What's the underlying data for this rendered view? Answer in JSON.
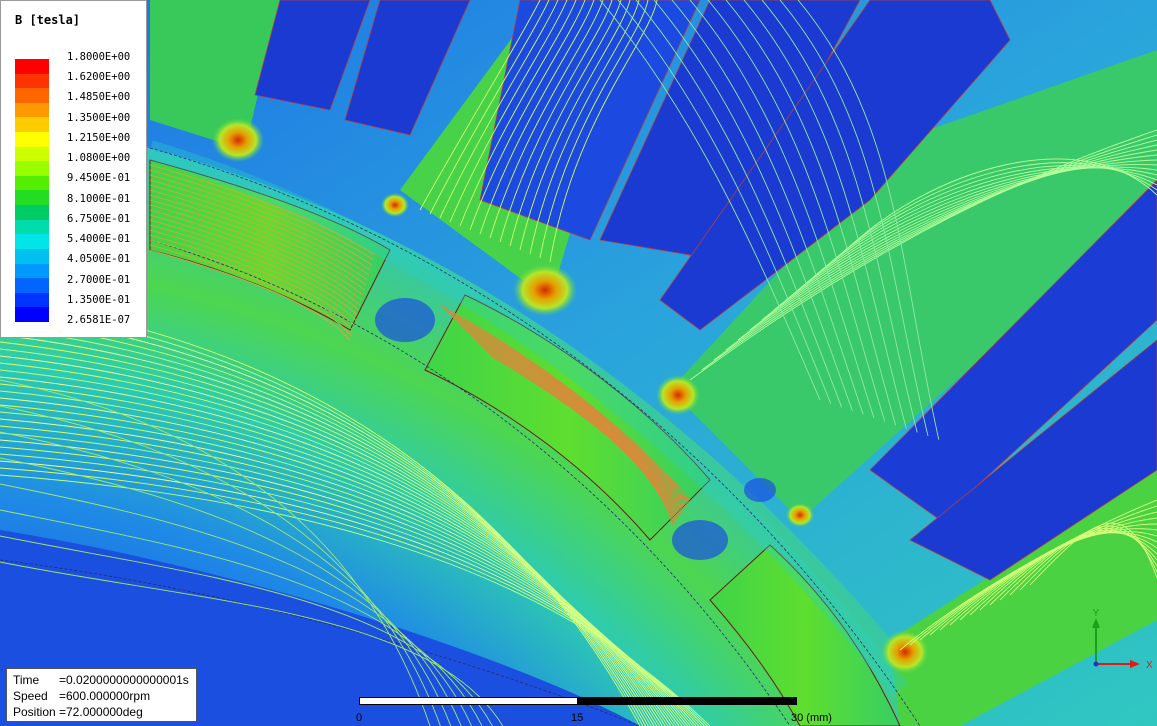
{
  "legend": {
    "title": "B [tesla]",
    "ticks": [
      "1.8000E+00",
      "1.6200E+00",
      "1.4850E+00",
      "1.3500E+00",
      "1.2150E+00",
      "1.0800E+00",
      "9.4500E-01",
      "8.1000E-01",
      "6.7500E-01",
      "5.4000E-01",
      "4.0500E-01",
      "2.7000E-01",
      "1.3500E-01",
      "2.6581E-07"
    ],
    "colors": [
      "#ff0000",
      "#ff3300",
      "#ff6600",
      "#ff9900",
      "#ffcc00",
      "#ffff00",
      "#ccff00",
      "#99ff00",
      "#55ee00",
      "#22dd22",
      "#00cc66",
      "#00ddaa",
      "#00e6e6",
      "#00c0f0",
      "#0099ff",
      "#0066ff",
      "#0033ff",
      "#0000ff"
    ]
  },
  "info": {
    "time_label": "Time",
    "time_value": "=0.0200000000000001s",
    "speed_label": "Speed",
    "speed_value": "=600.000000rpm",
    "position_label": "Position",
    "position_value": "=72.000000deg"
  },
  "scale": {
    "label_0": "0",
    "label_mid": "15",
    "label_end": "30 (mm)"
  },
  "axes": {
    "x_label": "X",
    "y_label": "Y"
  },
  "colors": {
    "background_field": "#1a52e0",
    "air_gap_field": "#20c0d0",
    "core_field": "#3ed63e",
    "slot_winding": "#1a33cc",
    "contour_line": "#ffff66",
    "high_flux": "#e63a00"
  }
}
